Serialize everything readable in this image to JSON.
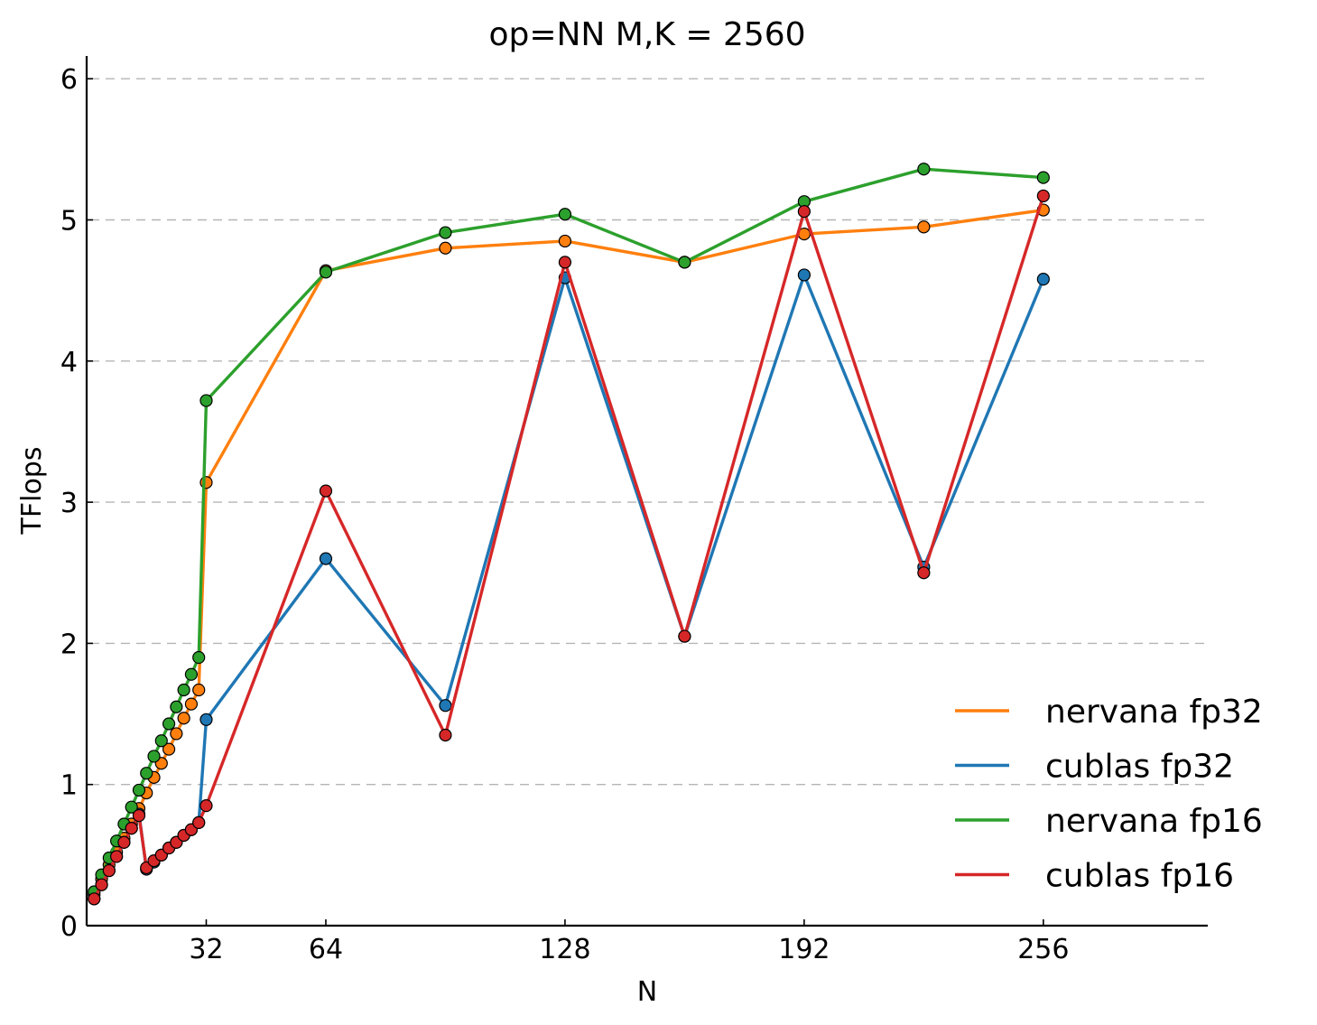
{
  "chart_data": {
    "type": "line",
    "title": "op=NN M,K = 2560",
    "xlabel": "N",
    "ylabel": "TFlops",
    "xlim": [
      0,
      304
    ],
    "ylim": [
      0,
      6.15
    ],
    "xticks": [
      32,
      64,
      128,
      192,
      256
    ],
    "yticks": [
      0,
      1,
      2,
      3,
      4,
      5,
      6
    ],
    "grid": "horizontal-dashed",
    "legend_position": "bottom-right",
    "series": [
      {
        "name": "nervana fp32",
        "color": "#ff7f0e",
        "points": [
          [
            2,
            0.22
          ],
          [
            4,
            0.33
          ],
          [
            6,
            0.43
          ],
          [
            8,
            0.52
          ],
          [
            10,
            0.62
          ],
          [
            12,
            0.72
          ],
          [
            14,
            0.83
          ],
          [
            16,
            0.94
          ],
          [
            18,
            1.05
          ],
          [
            20,
            1.15
          ],
          [
            22,
            1.25
          ],
          [
            24,
            1.36
          ],
          [
            26,
            1.47
          ],
          [
            28,
            1.57
          ],
          [
            30,
            1.67
          ],
          [
            32,
            3.14
          ],
          [
            64,
            4.64
          ],
          [
            96,
            4.8
          ],
          [
            128,
            4.85
          ],
          [
            160,
            4.7
          ],
          [
            192,
            4.9
          ],
          [
            224,
            4.95
          ],
          [
            256,
            5.07
          ]
        ]
      },
      {
        "name": "cublas fp32",
        "color": "#1f77b4",
        "points": [
          [
            2,
            0.19
          ],
          [
            4,
            0.29
          ],
          [
            6,
            0.39
          ],
          [
            8,
            0.49
          ],
          [
            10,
            0.59
          ],
          [
            12,
            0.69
          ],
          [
            14,
            0.79
          ],
          [
            16,
            0.4
          ],
          [
            18,
            0.45
          ],
          [
            20,
            0.5
          ],
          [
            22,
            0.55
          ],
          [
            24,
            0.59
          ],
          [
            26,
            0.64
          ],
          [
            28,
            0.68
          ],
          [
            30,
            0.73
          ],
          [
            32,
            1.46
          ],
          [
            64,
            2.6
          ],
          [
            96,
            1.56
          ],
          [
            128,
            4.59
          ],
          [
            160,
            2.05
          ],
          [
            192,
            4.61
          ],
          [
            224,
            2.54
          ],
          [
            256,
            4.58
          ]
        ]
      },
      {
        "name": "nervana fp16",
        "color": "#2ca02c",
        "points": [
          [
            2,
            0.24
          ],
          [
            4,
            0.36
          ],
          [
            6,
            0.48
          ],
          [
            8,
            0.6
          ],
          [
            10,
            0.72
          ],
          [
            12,
            0.84
          ],
          [
            14,
            0.96
          ],
          [
            16,
            1.08
          ],
          [
            18,
            1.2
          ],
          [
            20,
            1.31
          ],
          [
            22,
            1.43
          ],
          [
            24,
            1.55
          ],
          [
            26,
            1.67
          ],
          [
            28,
            1.78
          ],
          [
            30,
            1.9
          ],
          [
            32,
            3.72
          ],
          [
            64,
            4.63
          ],
          [
            96,
            4.91
          ],
          [
            128,
            5.04
          ],
          [
            160,
            4.7
          ],
          [
            192,
            5.13
          ],
          [
            224,
            5.36
          ],
          [
            256,
            5.3
          ]
        ]
      },
      {
        "name": "cublas fp16",
        "color": "#d62728",
        "points": [
          [
            2,
            0.19
          ],
          [
            4,
            0.29
          ],
          [
            6,
            0.39
          ],
          [
            8,
            0.49
          ],
          [
            10,
            0.59
          ],
          [
            12,
            0.69
          ],
          [
            14,
            0.78
          ],
          [
            16,
            0.41
          ],
          [
            18,
            0.46
          ],
          [
            20,
            0.5
          ],
          [
            22,
            0.55
          ],
          [
            24,
            0.59
          ],
          [
            26,
            0.64
          ],
          [
            28,
            0.68
          ],
          [
            30,
            0.73
          ],
          [
            32,
            0.85
          ],
          [
            64,
            3.08
          ],
          [
            96,
            1.35
          ],
          [
            128,
            4.7
          ],
          [
            160,
            2.05
          ],
          [
            192,
            5.06
          ],
          [
            224,
            2.5
          ],
          [
            256,
            5.17
          ]
        ]
      }
    ]
  }
}
